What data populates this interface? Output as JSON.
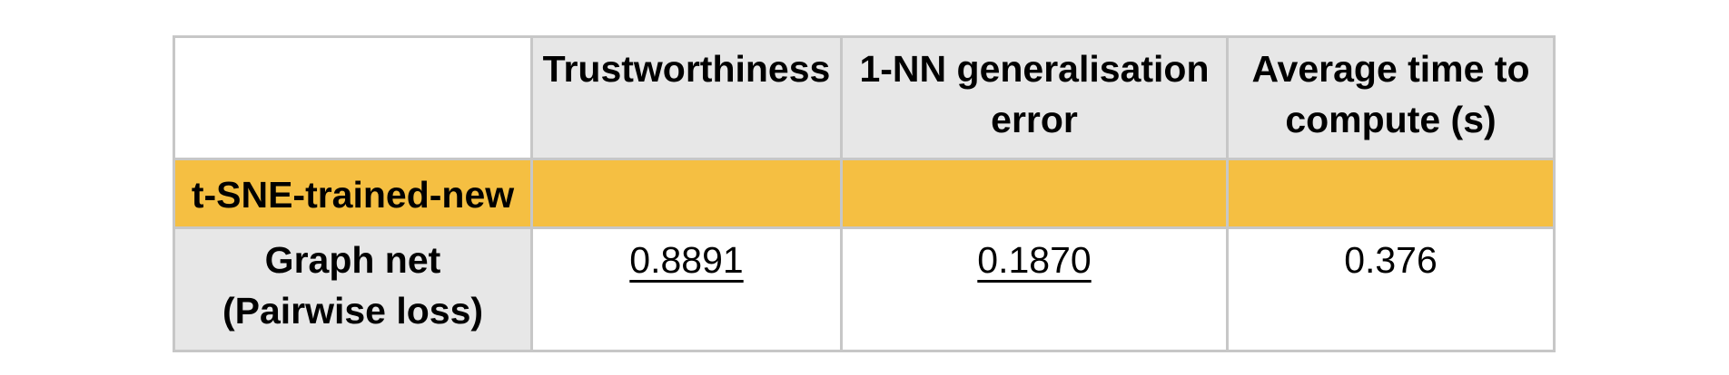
{
  "table": {
    "columns": [
      "",
      "Trustworthiness",
      "1-NN generalisation error",
      "Average time to compute (s)"
    ],
    "section": {
      "label": "t-SNE-trained-new",
      "color": "#f5bf42"
    },
    "rows": [
      {
        "label": "Graph net (Pairwise loss)",
        "values": [
          "0.8891",
          "0.1870",
          "0.376"
        ],
        "underlined": [
          true,
          true,
          false
        ]
      }
    ],
    "header_color": "#e7e7e7",
    "border_color": "#c7c7c7"
  }
}
